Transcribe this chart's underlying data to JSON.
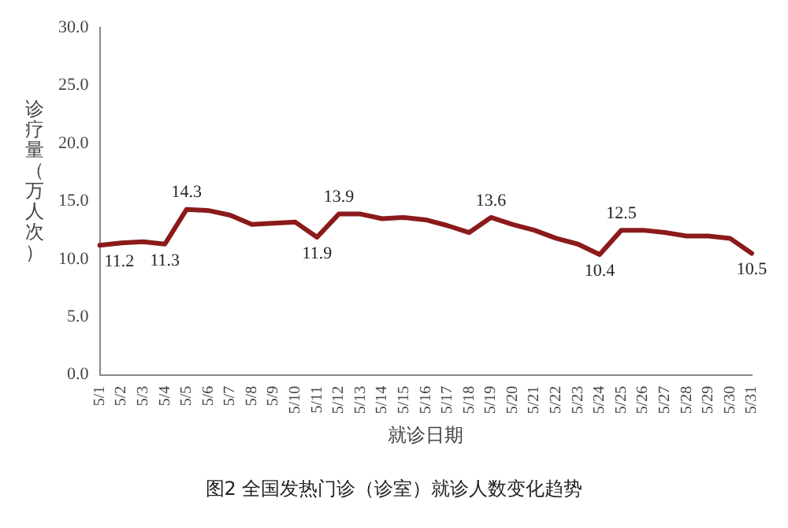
{
  "chart_data": {
    "type": "line",
    "xlabel": "就诊日期",
    "ylabel": "诊疗量（万人次）",
    "categories": [
      "5/1",
      "5/2",
      "5/3",
      "5/4",
      "5/5",
      "5/6",
      "5/7",
      "5/8",
      "5/9",
      "5/10",
      "5/11",
      "5/12",
      "5/13",
      "5/14",
      "5/15",
      "5/16",
      "5/17",
      "5/18",
      "5/19",
      "5/20",
      "5/21",
      "5/22",
      "5/23",
      "5/24",
      "5/25",
      "5/26",
      "5/27",
      "5/28",
      "5/29",
      "5/30",
      "5/31"
    ],
    "series": [
      {
        "color": "#8b1a1a",
        "values": [
          11.2,
          11.4,
          11.5,
          11.3,
          14.3,
          14.2,
          13.8,
          13.0,
          13.1,
          13.2,
          11.9,
          13.9,
          13.9,
          13.5,
          13.6,
          13.4,
          12.9,
          12.3,
          13.6,
          13.0,
          12.5,
          11.8,
          11.3,
          10.4,
          12.5,
          12.5,
          12.3,
          12.0,
          12.0,
          11.8,
          10.5
        ],
        "value_labels": [
          "11.2",
          null,
          null,
          "11.3",
          "14.3",
          null,
          null,
          null,
          null,
          null,
          "11.9",
          "13.9",
          null,
          null,
          null,
          null,
          null,
          null,
          "13.6",
          null,
          null,
          null,
          null,
          "10.4",
          "12.5",
          null,
          null,
          null,
          null,
          null,
          "10.5"
        ]
      }
    ],
    "ylim": [
      0,
      30
    ],
    "yticks": [
      {
        "value": 0,
        "label": "0.0"
      },
      {
        "value": 5,
        "label": "5.0"
      },
      {
        "value": 10,
        "label": "10.0"
      },
      {
        "value": 15,
        "label": "15.0"
      },
      {
        "value": 20,
        "label": "20.0"
      },
      {
        "value": 25,
        "label": "25.0"
      },
      {
        "value": 30,
        "label": "30.0"
      }
    ],
    "grid": false,
    "legend": false,
    "marker": "none",
    "line_style": "solid",
    "annotations": [
      "图2 全国发热门诊（诊室）就诊人数变化趋势"
    ]
  }
}
